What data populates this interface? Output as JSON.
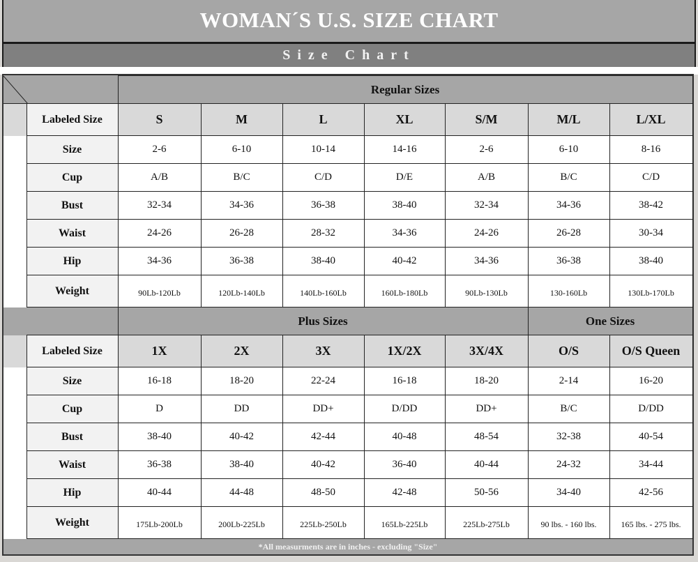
{
  "title": "WOMAN´S  U.S. SIZE CHART",
  "subtitle": "Size Chart",
  "regular": {
    "section_label": "Regular Sizes",
    "labeled_size_header": "Labeled Size",
    "columns": [
      "S",
      "M",
      "L",
      "XL",
      "S/M",
      "M/L",
      "L/XL"
    ],
    "rows": [
      {
        "label": "Size",
        "values": [
          "2-6",
          "6-10",
          "10-14",
          "14-16",
          "2-6",
          "6-10",
          "8-16"
        ]
      },
      {
        "label": "Cup",
        "values": [
          "A/B",
          "B/C",
          "C/D",
          "D/E",
          "A/B",
          "B/C",
          "C/D"
        ]
      },
      {
        "label": "Bust",
        "values": [
          "32-34",
          "34-36",
          "36-38",
          "38-40",
          "32-34",
          "34-36",
          "38-42"
        ]
      },
      {
        "label": "Waist",
        "values": [
          "24-26",
          "26-28",
          "28-32",
          "34-36",
          "24-26",
          "26-28",
          "30-34"
        ]
      },
      {
        "label": "Hip",
        "values": [
          "34-36",
          "36-38",
          "38-40",
          "40-42",
          "34-36",
          "36-38",
          "38-40"
        ]
      },
      {
        "label": "Weight",
        "values": [
          "90Lb-120Lb",
          "120Lb-140Lb",
          "140Lb-160Lb",
          "160Lb-180Lb",
          "90Lb-130Lb",
          "130-160Lb",
          "130Lb-170Lb"
        ]
      }
    ]
  },
  "plus": {
    "section_label": "Plus Sizes",
    "one_section_label": "One Sizes",
    "labeled_size_header": "Labeled Size",
    "columns": [
      "1X",
      "2X",
      "3X",
      "1X/2X",
      "3X/4X",
      "O/S",
      "O/S Queen"
    ],
    "rows": [
      {
        "label": "Size",
        "values": [
          "16-18",
          "18-20",
          "22-24",
          "16-18",
          "18-20",
          "2-14",
          "16-20"
        ]
      },
      {
        "label": "Cup",
        "values": [
          "D",
          "DD",
          "DD+",
          "D/DD",
          "DD+",
          "B/C",
          "D/DD"
        ]
      },
      {
        "label": "Bust",
        "values": [
          "38-40",
          "40-42",
          "42-44",
          "40-48",
          "48-54",
          "32-38",
          "40-54"
        ]
      },
      {
        "label": "Waist",
        "values": [
          "36-38",
          "38-40",
          "40-42",
          "36-40",
          "40-44",
          "24-32",
          "34-44"
        ]
      },
      {
        "label": "Hip",
        "values": [
          "40-44",
          "44-48",
          "48-50",
          "42-48",
          "50-56",
          "34-40",
          "42-56"
        ]
      },
      {
        "label": "Weight",
        "values": [
          "175Lb-200Lb",
          "200Lb-225Lb",
          "225Lb-250Lb",
          "165Lb-225Lb",
          "225Lb-275Lb",
          "90 lbs. - 160 lbs.",
          "165 lbs. - 275 lbs."
        ]
      }
    ]
  },
  "footnote": "*All measurments are in inches - excluding \"Size\""
}
